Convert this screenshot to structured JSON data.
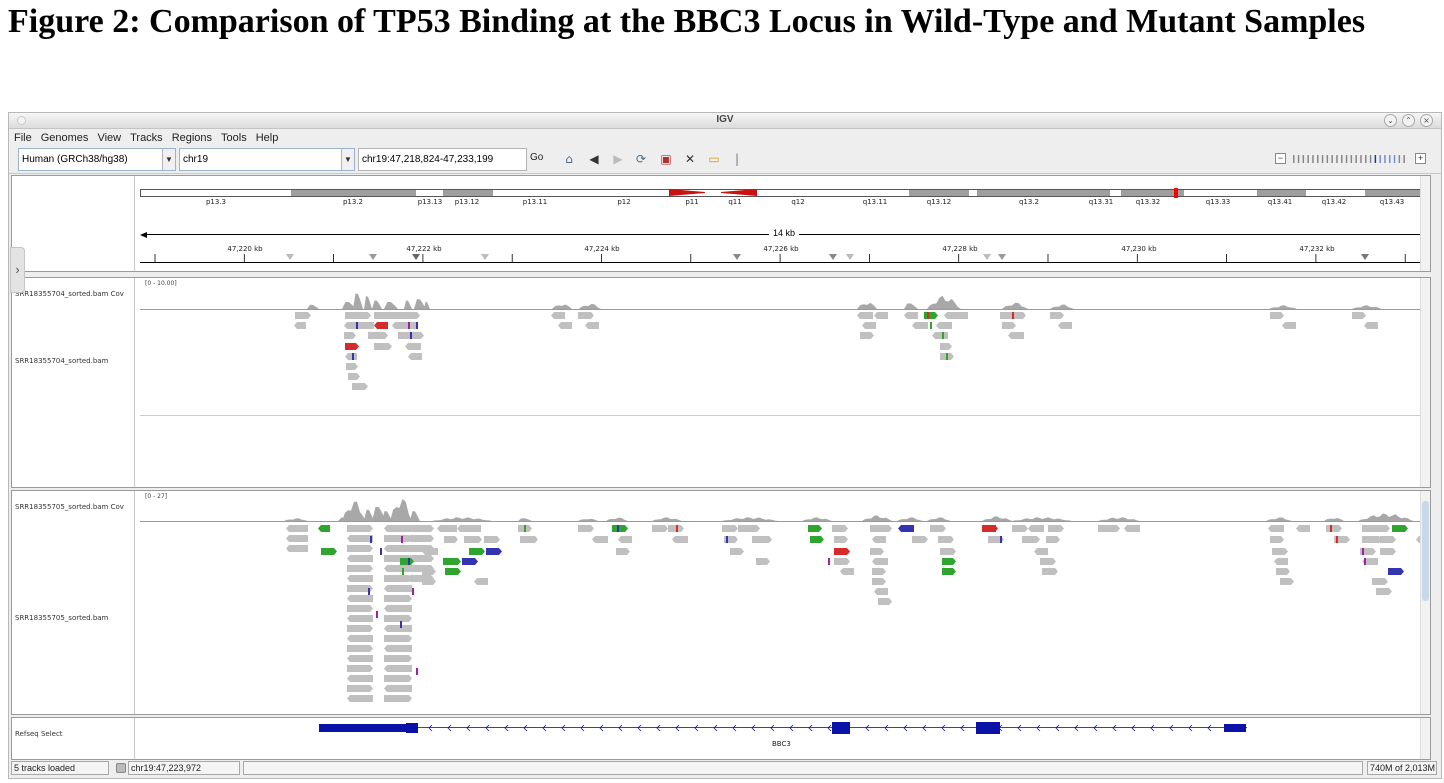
{
  "figure": {
    "title": "Figure 2: Comparison of TP53 Binding at the BBC3 Locus in Wild-Type and Mutant Samples"
  },
  "window": {
    "title": "IGV",
    "controls": [
      "⌄",
      "⌃",
      "×"
    ]
  },
  "menu": [
    "File",
    "Genomes",
    "View",
    "Tracks",
    "Regions",
    "Tools",
    "Help"
  ],
  "toolbar": {
    "genome": "Human (GRCh38/hg38)",
    "chromosome": "chr19",
    "locus": "chr19:47,218,824-47,233,199",
    "go_label": "Go",
    "icons": [
      "home-icon",
      "back-icon",
      "forward-icon",
      "refresh-icon",
      "roi-icon",
      "resize-icon",
      "popup-info-icon"
    ],
    "zoom_minus": "−",
    "zoom_plus": "+"
  },
  "ideogram": {
    "bands": [
      "p13.3",
      "p13.2",
      "p13.13",
      "p13.12",
      "p13.11",
      "p12",
      "p11",
      "q11",
      "q12",
      "q13.11",
      "q13.12",
      "q13.2",
      "q13.31",
      "q13.32",
      "q13.33",
      "q13.41",
      "q13.42",
      "q13.43"
    ]
  },
  "ruler": {
    "span": "14 kb",
    "ticks": [
      "47,220 kb",
      "47,222 kb",
      "47,224 kb",
      "47,226 kb",
      "47,228 kb",
      "47,230 kb",
      "47,232 kb"
    ]
  },
  "tracks": {
    "wt_coverage": "SRR18355704_sorted.bam Cov",
    "wt_alignments": "SRR18355704_sorted.bam",
    "wt_range": "[0 - 10.00]",
    "mut_coverage": "SRR18355705_sorted.bam Cov",
    "mut_alignments": "SRR18355705_sorted.bam",
    "mut_range": "[0 - 27]",
    "refseq": "Refseq Select",
    "gene": "BBC3"
  },
  "status": {
    "loaded": "5 tracks loaded",
    "position": "chr19:47,223,972",
    "memory": "740M of 2,013M"
  },
  "colors": {
    "read": "#c0c0c0",
    "coverage": "#a8a8a8",
    "gene": "#0a12a8",
    "mismatch_red": "#d62b2b",
    "mismatch_green": "#2fa52f",
    "mismatch_blue": "#3434b0"
  }
}
